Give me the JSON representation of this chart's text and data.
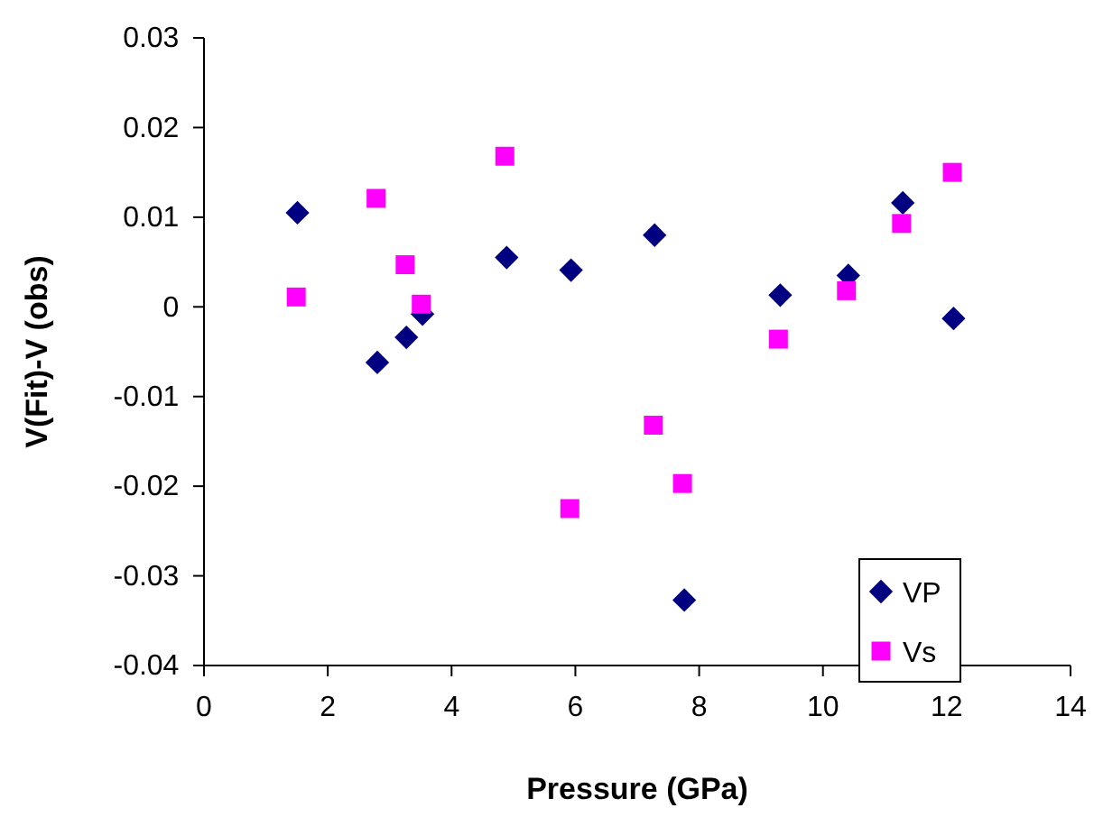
{
  "chart_data": {
    "type": "scatter",
    "xlabel": "Pressure (GPa)",
    "ylabel": "V(Fit)-V (obs)",
    "xlim": [
      0,
      14
    ],
    "xticks": [
      0,
      2,
      4,
      6,
      8,
      10,
      12,
      14
    ],
    "ylim": [
      -0.04,
      0.03
    ],
    "yticks": [
      -0.04,
      -0.03,
      -0.02,
      -0.01,
      0,
      0.01,
      0.02,
      0.03
    ],
    "grid": false,
    "legend": "bottom right",
    "series": [
      {
        "name": "VP",
        "color": "#000080",
        "marker": "diamond",
        "x": [
          1.51,
          2.8,
          3.27,
          3.53,
          4.89,
          5.93,
          7.28,
          7.76,
          9.31,
          10.41,
          11.29,
          12.11
        ],
        "values": [
          0.0105,
          -0.0062,
          -0.0034,
          -0.0008,
          0.0055,
          0.0041,
          0.008,
          -0.0327,
          0.0013,
          0.0035,
          0.0116,
          -0.0013
        ]
      },
      {
        "name": "Vs",
        "color": "#ff00ff",
        "marker": "square",
        "x": [
          1.49,
          2.78,
          3.25,
          3.51,
          4.86,
          5.91,
          7.26,
          7.73,
          9.28,
          10.38,
          11.27,
          12.09
        ],
        "values": [
          0.0011,
          0.0121,
          0.0047,
          0.0003,
          0.0168,
          -0.0225,
          -0.0132,
          -0.0197,
          -0.0036,
          0.0018,
          0.0093,
          0.015
        ]
      }
    ]
  }
}
